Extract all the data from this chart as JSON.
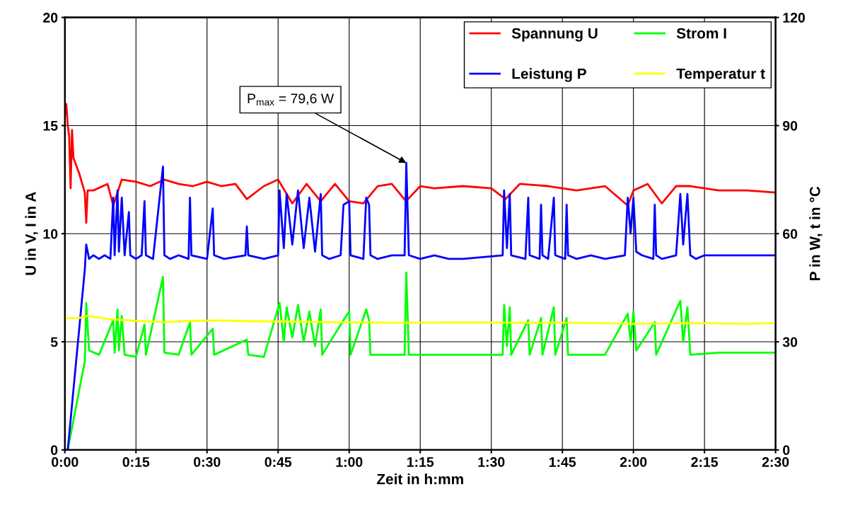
{
  "chart_data": {
    "type": "line",
    "xlabel": "Zeit in h:mm",
    "ylabel": "U in V, I in A",
    "y2label": "P in W, t in °C",
    "xlim": [
      0,
      2.5
    ],
    "xticks": [
      {
        "value": 0,
        "label": "0:00"
      },
      {
        "value": 0.25,
        "label": "0:15"
      },
      {
        "value": 0.5,
        "label": "0:30"
      },
      {
        "value": 0.75,
        "label": "0:45"
      },
      {
        "value": 1.0,
        "label": "1:00"
      },
      {
        "value": 1.25,
        "label": "1:15"
      },
      {
        "value": 1.5,
        "label": "1:30"
      },
      {
        "value": 1.75,
        "label": "1:45"
      },
      {
        "value": 2.0,
        "label": "2:00"
      },
      {
        "value": 2.25,
        "label": "2:15"
      },
      {
        "value": 2.5,
        "label": "2:30"
      }
    ],
    "ylim": [
      0,
      20
    ],
    "yticks": [
      0,
      5,
      10,
      15,
      20
    ],
    "y2lim": [
      0,
      120
    ],
    "y2ticks": [
      0,
      30,
      60,
      90,
      120
    ],
    "grid": true,
    "legend": "top right",
    "marker": "none",
    "line_style": "solid",
    "annotations": [
      {
        "text": "P$_{max}$ = 79,6 W",
        "x": 1.201,
        "y": 13.27
      }
    ],
    "series": [
      {
        "name": "Spannung U",
        "color": "#ff0000",
        "axis": "y",
        "x": [
          0,
          0.005,
          0.01,
          0.015,
          0.02,
          0.025,
          0.03,
          0.05,
          0.07,
          0.075,
          0.08,
          0.1,
          0.15,
          0.17,
          0.2,
          0.25,
          0.3,
          0.35,
          0.4,
          0.45,
          0.5,
          0.55,
          0.6,
          0.64,
          0.7,
          0.75,
          0.8,
          0.85,
          0.9,
          0.95,
          1.0,
          1.05,
          1.1,
          1.15,
          1.2,
          1.25,
          1.3,
          1.4,
          1.5,
          1.55,
          1.6,
          1.7,
          1.8,
          1.9,
          1.98,
          2.0,
          2.05,
          2.1,
          2.15,
          2.2,
          2.3,
          2.4,
          2.5
        ],
        "values": [
          15.5,
          16,
          15,
          14.5,
          12.1,
          14.8,
          13.5,
          12.8,
          11.9,
          10.5,
          12,
          12,
          12.3,
          11.3,
          12.5,
          12.4,
          12.2,
          12.5,
          12.3,
          12.2,
          12.4,
          12.2,
          12.3,
          11.6,
          12.2,
          12.5,
          11.4,
          12.3,
          11.5,
          12.3,
          11.5,
          11.4,
          12.2,
          12.3,
          11.5,
          12.2,
          12.1,
          12.2,
          12.1,
          11.6,
          12.3,
          12.2,
          12.0,
          12.2,
          11.3,
          12.0,
          12.3,
          11.4,
          12.2,
          12.2,
          12.0,
          12.0,
          11.9
        ]
      },
      {
        "name": "Strom I",
        "color": "#00ff00",
        "axis": "y",
        "x": [
          0.005,
          0.01,
          0.07,
          0.075,
          0.085,
          0.12,
          0.17,
          0.175,
          0.185,
          0.19,
          0.2,
          0.21,
          0.25,
          0.28,
          0.285,
          0.345,
          0.35,
          0.4,
          0.44,
          0.445,
          0.52,
          0.525,
          0.64,
          0.645,
          0.7,
          0.755,
          0.77,
          0.78,
          0.8,
          0.82,
          0.84,
          0.86,
          0.88,
          0.9,
          0.905,
          0.98,
          1.0,
          1.005,
          1.06,
          1.07,
          1.075,
          1.15,
          1.195,
          1.201,
          1.21,
          1.3,
          1.4,
          1.54,
          1.545,
          1.555,
          1.565,
          1.57,
          1.63,
          1.635,
          1.675,
          1.68,
          1.72,
          1.725,
          1.765,
          1.77,
          1.9,
          1.98,
          1.99,
          2.0,
          2.01,
          2.075,
          2.08,
          2.165,
          2.175,
          2.19,
          2.2,
          2.3,
          2.5
        ],
        "values": [
          0,
          0,
          4.1,
          6.8,
          4.6,
          4.4,
          6.0,
          4.5,
          6.5,
          4.6,
          6.2,
          4.4,
          4.3,
          5.8,
          4.4,
          8.0,
          4.5,
          4.4,
          5.9,
          4.4,
          5.6,
          4.4,
          5.1,
          4.4,
          4.3,
          6.8,
          5.0,
          6.6,
          5.2,
          6.7,
          5.0,
          6.4,
          4.8,
          6.5,
          4.4,
          6.0,
          6.4,
          4.4,
          6.5,
          6.0,
          4.4,
          4.4,
          4.4,
          8.2,
          4.4,
          4.4,
          4.4,
          4.4,
          6.7,
          4.8,
          6.6,
          4.4,
          6.0,
          4.4,
          6.1,
          4.4,
          6.6,
          4.4,
          6.1,
          4.4,
          4.4,
          6.3,
          5.0,
          6.4,
          4.6,
          5.9,
          4.4,
          6.9,
          5.0,
          6.6,
          4.4,
          4.5,
          4.5
        ]
      },
      {
        "name": "Leistung P",
        "color": "#0000ff",
        "axis": "y2",
        "x": [
          0.005,
          0.01,
          0.07,
          0.075,
          0.085,
          0.1,
          0.12,
          0.14,
          0.16,
          0.17,
          0.175,
          0.185,
          0.19,
          0.2,
          0.21,
          0.225,
          0.23,
          0.25,
          0.27,
          0.28,
          0.285,
          0.31,
          0.345,
          0.35,
          0.37,
          0.4,
          0.435,
          0.44,
          0.445,
          0.5,
          0.52,
          0.525,
          0.56,
          0.635,
          0.64,
          0.645,
          0.7,
          0.75,
          0.755,
          0.77,
          0.78,
          0.8,
          0.82,
          0.84,
          0.86,
          0.88,
          0.9,
          0.905,
          0.93,
          0.97,
          0.98,
          1.0,
          1.005,
          1.05,
          1.06,
          1.07,
          1.075,
          1.1,
          1.15,
          1.195,
          1.201,
          1.21,
          1.25,
          1.3,
          1.35,
          1.4,
          1.54,
          1.545,
          1.555,
          1.565,
          1.57,
          1.62,
          1.63,
          1.635,
          1.67,
          1.675,
          1.68,
          1.7,
          1.72,
          1.725,
          1.76,
          1.765,
          1.77,
          1.8,
          1.85,
          1.9,
          1.97,
          1.98,
          1.99,
          2.0,
          2.01,
          2.03,
          2.07,
          2.075,
          2.08,
          2.1,
          2.15,
          2.165,
          2.175,
          2.19,
          2.2,
          2.22,
          2.25,
          2.3,
          2.4,
          2.5
        ],
        "values": [
          0,
          0,
          50,
          57,
          53,
          54,
          53,
          54,
          53,
          70,
          54,
          72,
          55,
          70,
          54,
          66,
          54,
          53,
          54,
          69,
          54,
          53,
          78.6,
          54,
          53,
          54,
          53,
          70,
          54,
          53,
          67,
          54,
          53,
          54,
          62,
          54,
          53,
          54,
          72,
          56,
          71,
          57,
          72,
          56,
          70,
          55,
          71,
          54,
          53,
          54,
          68,
          69,
          54,
          53,
          70,
          68,
          54,
          53,
          54,
          54,
          79.6,
          54,
          53,
          54,
          53,
          53,
          54,
          72,
          56,
          71,
          54,
          53,
          70,
          54,
          53,
          68,
          54,
          53,
          70,
          54,
          53,
          68,
          54,
          53,
          54,
          53,
          54,
          70,
          60,
          70,
          55,
          54,
          53,
          68,
          54,
          53,
          54,
          71,
          57,
          71,
          54,
          53,
          54,
          54,
          54,
          54
        ]
      },
      {
        "name": "Temperatur t",
        "color": "#ffff00",
        "axis": "y2",
        "x": [
          0,
          0.05,
          0.08,
          0.15,
          0.25,
          0.35,
          0.45,
          0.55,
          0.65,
          0.8,
          1.0,
          1.2,
          1.4,
          1.6,
          1.8,
          2.0,
          2.2,
          2.4,
          2.5
        ],
        "values": [
          36.5,
          36.6,
          37.2,
          36.3,
          35.8,
          35.5,
          35.8,
          35.9,
          35.7,
          35.6,
          35.4,
          35.3,
          35.4,
          35.3,
          35.3,
          35.0,
          35.2,
          35.0,
          35.2
        ]
      }
    ]
  }
}
